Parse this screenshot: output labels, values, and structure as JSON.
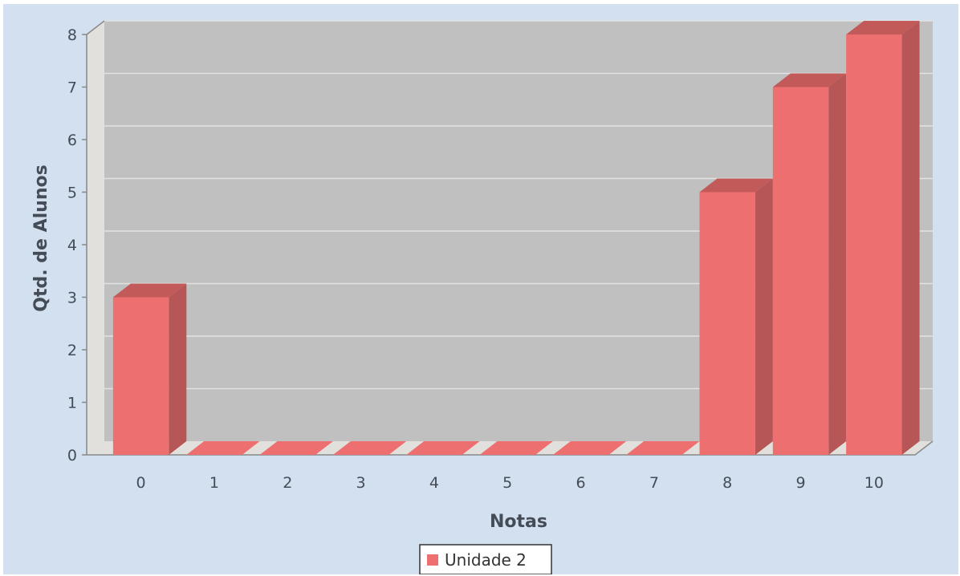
{
  "chart_data": {
    "type": "bar",
    "xlabel": "Notas",
    "ylabel": "Qtd. de Alunos",
    "categories": [
      "0",
      "1",
      "2",
      "3",
      "4",
      "5",
      "6",
      "7",
      "8",
      "9",
      "10"
    ],
    "series": [
      {
        "name": "Unidade 2",
        "values": [
          3,
          0,
          0,
          0,
          0,
          0,
          0,
          0,
          5,
          7,
          8
        ]
      }
    ],
    "ylim": [
      0,
      8
    ],
    "yticks": [
      "0",
      "1",
      "2",
      "3",
      "4",
      "5",
      "6",
      "7",
      "8"
    ],
    "grid": true,
    "legend_position": "bottom",
    "three_d": true,
    "colors": {
      "background": "#d3e0f0",
      "plot_area": "#c0c0c0",
      "wall": "#e2e0dc",
      "bar_front": "#ee6f6f",
      "bar_side": "#b65656",
      "bar_top": "#c25a5a",
      "gridline": "#e2e2e2",
      "axis": "#888888"
    }
  }
}
